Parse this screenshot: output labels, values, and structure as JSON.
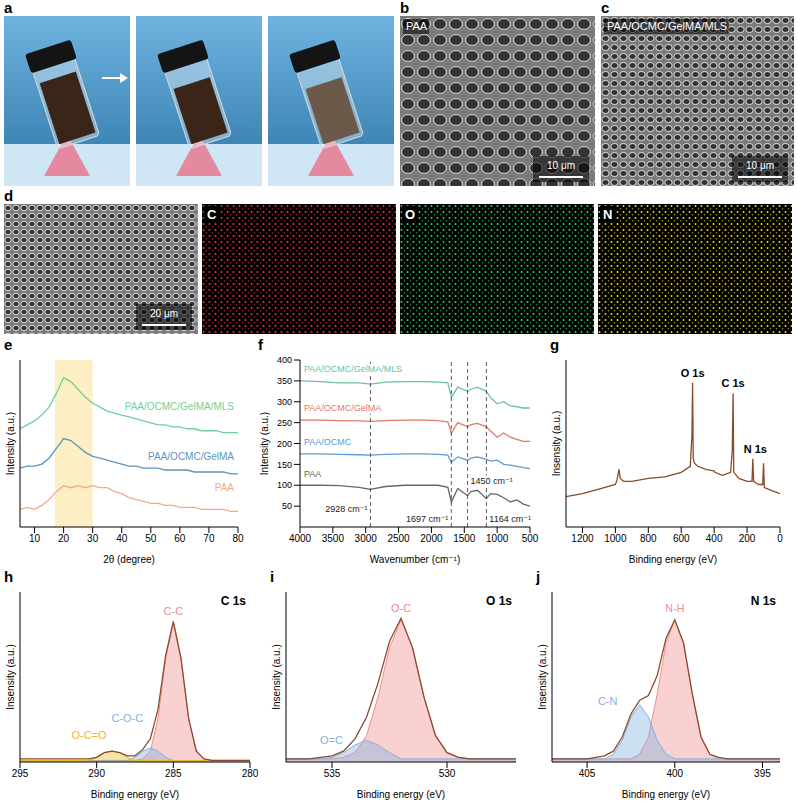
{
  "panels": [
    {
      "panel": "a"
    },
    {
      "panel": "b",
      "label": "PAA",
      "scale_bar": "10 μm"
    },
    {
      "panel": "c",
      "label": "PAA/OCMC/GelMA/MLS",
      "scale_bar": "10 μm"
    },
    {
      "panel": "d",
      "scale_bar": "20 μm",
      "maps": [
        {
          "label": "C",
          "color": "#e8323c"
        },
        {
          "label": "O",
          "color": "#2ed15a"
        },
        {
          "label": "N",
          "color": "#e6d22e"
        }
      ]
    }
  ],
  "chart_data": [
    {
      "panel": "e",
      "type": "line",
      "xlabel": "2θ (degree)",
      "ylabel": "Intensity (a.u.)",
      "xlim": [
        5,
        80
      ],
      "xticks": [
        10,
        20,
        30,
        40,
        50,
        60,
        70,
        80
      ],
      "ylim": [
        0,
        85
      ],
      "tick_labels": "x",
      "highlight": {
        "x": [
          17,
          30
        ],
        "color": "#fcefc4"
      },
      "x": [
        5,
        7.5,
        10,
        12.5,
        15,
        17.5,
        20,
        22.5,
        25,
        27.5,
        30,
        32.5,
        35,
        37.5,
        40,
        42.5,
        45,
        47.5,
        50,
        52.5,
        55,
        57.5,
        60,
        62.5,
        65,
        67.5,
        70,
        72.5,
        75,
        77.5,
        80
      ],
      "series": [
        {
          "name": "PAA",
          "color": "#f4a98a",
          "values": [
            9,
            10,
            9,
            11,
            14,
            18,
            21,
            20,
            21,
            20,
            21,
            20,
            20,
            18,
            17,
            15,
            14,
            13,
            12,
            12,
            11,
            11,
            10,
            10,
            10,
            9,
            9,
            9,
            9,
            8,
            8
          ]
        },
        {
          "name": "PAA/OCMC/GelMA",
          "color": "#5b95bf",
          "values": [
            30,
            31,
            31,
            32,
            35,
            40,
            45,
            44,
            41,
            38,
            36,
            35,
            34,
            33,
            32,
            31,
            31,
            30,
            30,
            30,
            29,
            29,
            29,
            29,
            28,
            28,
            28,
            28,
            28,
            27,
            27
          ]
        },
        {
          "name": "PAA/OCMC/GelMA/MLS",
          "color": "#72cf9c",
          "values": [
            50,
            52,
            54,
            57,
            61,
            68,
            76,
            74,
            70,
            66,
            63,
            61,
            59,
            58,
            57,
            56,
            55,
            54,
            53,
            52,
            52,
            51,
            51,
            50,
            50,
            49,
            49,
            49,
            48,
            48,
            48
          ]
        }
      ]
    },
    {
      "panel": "f",
      "type": "line",
      "xlabel": "Wavenumber (cm⁻¹)",
      "ylabel": "Intensity (a.u.)",
      "xlim": [
        4000,
        500
      ],
      "xticks": [
        4000,
        3500,
        3000,
        2500,
        2000,
        1500,
        1000,
        500
      ],
      "ylim": [
        0,
        400
      ],
      "yticks": [
        50,
        100,
        150,
        200,
        250,
        300,
        350,
        400
      ],
      "annotations": [
        {
          "x": 2928,
          "label": "2928 cm⁻¹"
        },
        {
          "x": 1697,
          "label": "1697 cm⁻¹"
        },
        {
          "x": 1450,
          "label": "1450 cm⁻¹"
        },
        {
          "x": 1164,
          "label": "1164 cm⁻¹"
        }
      ],
      "x": [
        500,
        600,
        700,
        800,
        900,
        1000,
        1100,
        1164,
        1300,
        1400,
        1450,
        1600,
        1697,
        1750,
        1900,
        2100,
        2400,
        2700,
        2928,
        3100,
        3400,
        3700,
        4000
      ],
      "series": [
        {
          "name": "PAA",
          "color": "#666666",
          "values": [
            50,
            55,
            65,
            60,
            70,
            78,
            80,
            68,
            88,
            85,
            75,
            92,
            60,
            95,
            100,
            100,
            100,
            97,
            90,
            95,
            99,
            100,
            100
          ]
        },
        {
          "name": "PAA/OCMC",
          "color": "#5b9bd5",
          "values": [
            140,
            142,
            145,
            148,
            150,
            160,
            158,
            162,
            168,
            165,
            160,
            168,
            155,
            172,
            174,
            175,
            175,
            174,
            172,
            173,
            174,
            175,
            175
          ]
        },
        {
          "name": "PAA/OCMC/GelMA",
          "color": "#e07a6a",
          "values": [
            205,
            205,
            210,
            215,
            225,
            215,
            230,
            240,
            248,
            245,
            240,
            250,
            225,
            252,
            255,
            256,
            256,
            255,
            253,
            254,
            255,
            256,
            256
          ]
        },
        {
          "name": "PAA/OCMC/GelMA/MLS",
          "color": "#6cc3a0",
          "values": [
            285,
            285,
            288,
            290,
            300,
            295,
            310,
            325,
            335,
            330,
            325,
            335,
            310,
            345,
            347,
            348,
            348,
            347,
            342,
            345,
            345,
            348,
            350
          ]
        }
      ]
    },
    {
      "panel": "g",
      "type": "line",
      "xlabel": "Binding energy (eV)",
      "ylabel": "Insensity (a.u.)",
      "xlim": [
        1300,
        0
      ],
      "xticks": [
        1200,
        1000,
        800,
        600,
        400,
        200,
        0
      ],
      "ylim": [
        0,
        110
      ],
      "tick_labels": "x",
      "annotations": [
        {
          "x": 531,
          "label": "O 1s"
        },
        {
          "x": 285,
          "label": "C 1s"
        },
        {
          "x": 150,
          "label": "N 1s"
        }
      ],
      "x": [
        0,
        50,
        95,
        100,
        105,
        130,
        160,
        165,
        170,
        200,
        250,
        281,
        285,
        290,
        300,
        350,
        395,
        400,
        405,
        450,
        500,
        520,
        527,
        531,
        535,
        545,
        600,
        700,
        800,
        900,
        950,
        970,
        978,
        990,
        1000,
        1100,
        1200,
        1300
      ],
      "series": [
        {
          "color": "#8b4a2b",
          "values": [
            22,
            24,
            26,
            42,
            28,
            28,
            30,
            45,
            30,
            30,
            32,
            36,
            88,
            50,
            36,
            34,
            36,
            37,
            37,
            38,
            40,
            42,
            45,
            95,
            60,
            40,
            36,
            33,
            32,
            30,
            30,
            32,
            38,
            31,
            28,
            25,
            22,
            20
          ]
        }
      ]
    },
    {
      "panel": "h",
      "type": "line",
      "title": "C 1s",
      "xlabel": "Binding energy (eV)",
      "ylabel": "Insensity (a.u.)",
      "xlim": [
        295,
        280
      ],
      "xticks": [
        295,
        290,
        285,
        280
      ],
      "ylim": [
        0,
        110
      ],
      "tick_labels": "x",
      "x": [
        280,
        280.5,
        281,
        281.5,
        282,
        282.5,
        283,
        283.5,
        284,
        284.5,
        285,
        285.5,
        286,
        286.5,
        287,
        287.5,
        288,
        288.5,
        289,
        289.5,
        290,
        290.5,
        291,
        291.5,
        292,
        292.5,
        293,
        293.5,
        294,
        294.5,
        295
      ],
      "series": [
        {
          "name": "C-C",
          "type": "area",
          "color": "#f08c8c",
          "values": [
            1,
            1,
            1,
            1,
            1,
            1,
            2,
            7,
            28,
            67,
            90,
            67,
            28,
            7,
            2,
            1,
            1,
            1,
            1,
            1,
            1,
            1,
            1,
            1,
            1,
            1,
            1,
            1,
            1,
            1,
            1
          ]
        },
        {
          "name": "C-O-C",
          "type": "area",
          "color": "#7fb2e0",
          "values": [
            1,
            1,
            1,
            1,
            1,
            1,
            1,
            1,
            1,
            1,
            1,
            3,
            7,
            9,
            7,
            3,
            1,
            1,
            1,
            1,
            1,
            1,
            1,
            1,
            1,
            1,
            1,
            1,
            1,
            1,
            1
          ]
        },
        {
          "name": "O-C=O",
          "type": "area",
          "color": "#e8b830",
          "values": [
            1,
            1,
            1,
            1,
            1,
            1,
            1,
            1,
            1,
            1,
            1,
            1,
            1,
            1,
            1,
            1,
            3,
            6,
            7,
            6,
            3,
            1,
            1,
            1,
            1,
            1,
            1,
            1,
            1,
            1,
            1
          ]
        },
        {
          "type": "line",
          "color": "#8b4a2b",
          "values": [
            1,
            1,
            1,
            1,
            1,
            1,
            2,
            7,
            28,
            67,
            91,
            69,
            34,
            15,
            8,
            4,
            4,
            6,
            7,
            6,
            3,
            2,
            2,
            2,
            2,
            2,
            2,
            2,
            2,
            2,
            2
          ]
        }
      ]
    },
    {
      "panel": "i",
      "type": "line",
      "title": "O 1s",
      "xlabel": "Binding energy (eV)",
      "ylabel": "Insensity (a.u.)",
      "xlim": [
        537,
        527
      ],
      "xticks": [
        535,
        530
      ],
      "ylim": [
        0,
        110
      ],
      "tick_labels": "x",
      "x": [
        527,
        527.5,
        528,
        528.5,
        529,
        529.5,
        530,
        530.5,
        531,
        531.5,
        532,
        532.5,
        533,
        533.5,
        534,
        534.5,
        535,
        535.5,
        536,
        536.5,
        537
      ],
      "series": [
        {
          "name": "O-C",
          "type": "area",
          "color": "#f08c8c",
          "values": [
            2,
            2,
            2,
            2,
            2,
            3,
            6,
            17,
            42,
            74,
            92,
            74,
            42,
            17,
            6,
            3,
            2,
            2,
            2,
            2,
            2
          ]
        },
        {
          "name": "O=C",
          "type": "area",
          "color": "#7fb2e0",
          "values": [
            2,
            2,
            2,
            2,
            2,
            2,
            2,
            2,
            2,
            2,
            2,
            6,
            11,
            14,
            11,
            6,
            3,
            2,
            2,
            2,
            2
          ]
        },
        {
          "type": "line",
          "color": "#8b4a2b",
          "values": [
            2,
            2,
            2,
            2,
            2,
            3,
            6,
            17,
            42,
            74,
            93,
            78,
            51,
            29,
            15,
            7,
            4,
            3,
            2,
            2,
            2
          ]
        }
      ]
    },
    {
      "panel": "j",
      "type": "line",
      "title": "N 1s",
      "xlabel": "Binding energy (eV)",
      "ylabel": "Insensity (a.u.)",
      "xlim": [
        407,
        394
      ],
      "xticks": [
        405,
        400,
        395
      ],
      "ylim": [
        0,
        110
      ],
      "tick_labels": "x",
      "x": [
        394,
        394.5,
        395,
        395.5,
        396,
        396.5,
        397,
        397.5,
        398,
        398.5,
        399,
        399.5,
        400,
        400.5,
        401,
        401.5,
        402,
        402.5,
        403,
        403.5,
        404,
        404.5,
        405,
        405.5,
        406,
        406.5,
        407
      ],
      "series": [
        {
          "name": "N-H",
          "type": "area",
          "color": "#f08c8c",
          "values": [
            2,
            2,
            2,
            2,
            2,
            2,
            2,
            2,
            5,
            16,
            44,
            77,
            92,
            77,
            44,
            16,
            5,
            2,
            2,
            2,
            2,
            2,
            2,
            2,
            2,
            2,
            2
          ]
        },
        {
          "name": "C-N",
          "type": "area",
          "color": "#7fb2e0",
          "values": [
            2,
            2,
            2,
            2,
            2,
            2,
            2,
            2,
            2,
            2,
            2,
            2,
            2,
            5,
            14,
            29,
            37,
            29,
            14,
            5,
            2,
            2,
            2,
            2,
            2,
            2,
            2
          ]
        },
        {
          "type": "line",
          "color": "#8b4a2b",
          "values": [
            2,
            2,
            2,
            2,
            2,
            2,
            2,
            3,
            5,
            16,
            44,
            77,
            92,
            80,
            56,
            43,
            40,
            31,
            16,
            7,
            4,
            3,
            2,
            2,
            2,
            2,
            2
          ]
        }
      ]
    }
  ]
}
